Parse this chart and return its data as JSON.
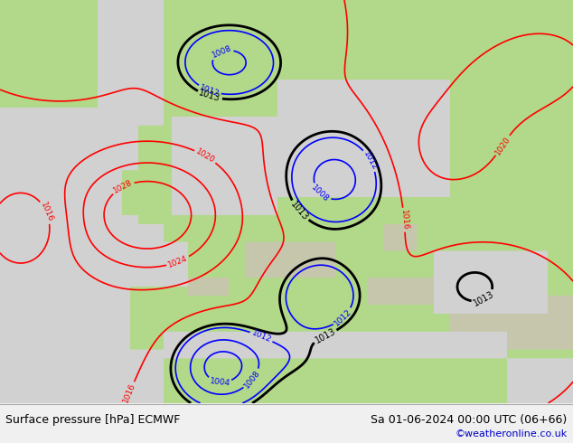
{
  "title_left": "Surface pressure [hPa] ECMWF",
  "title_right": "Sa 01-06-2024 00:00 UTC (06+66)",
  "copyright": "©weatheronline.co.uk",
  "bg_color_sea": "#d8d8d8",
  "bg_color_land": "#b4d98a",
  "bg_color_mountain": "#c8c8b0",
  "bg_color_bottom": "#f0f0f0",
  "text_color_left": "#000000",
  "text_color_right": "#000000",
  "text_color_copyright": "#0000cc",
  "font_size_bottom": 9,
  "font_size_copyright": 8,
  "color_red": "#ff0000",
  "color_blue": "#0000ff",
  "color_black": "#000000"
}
